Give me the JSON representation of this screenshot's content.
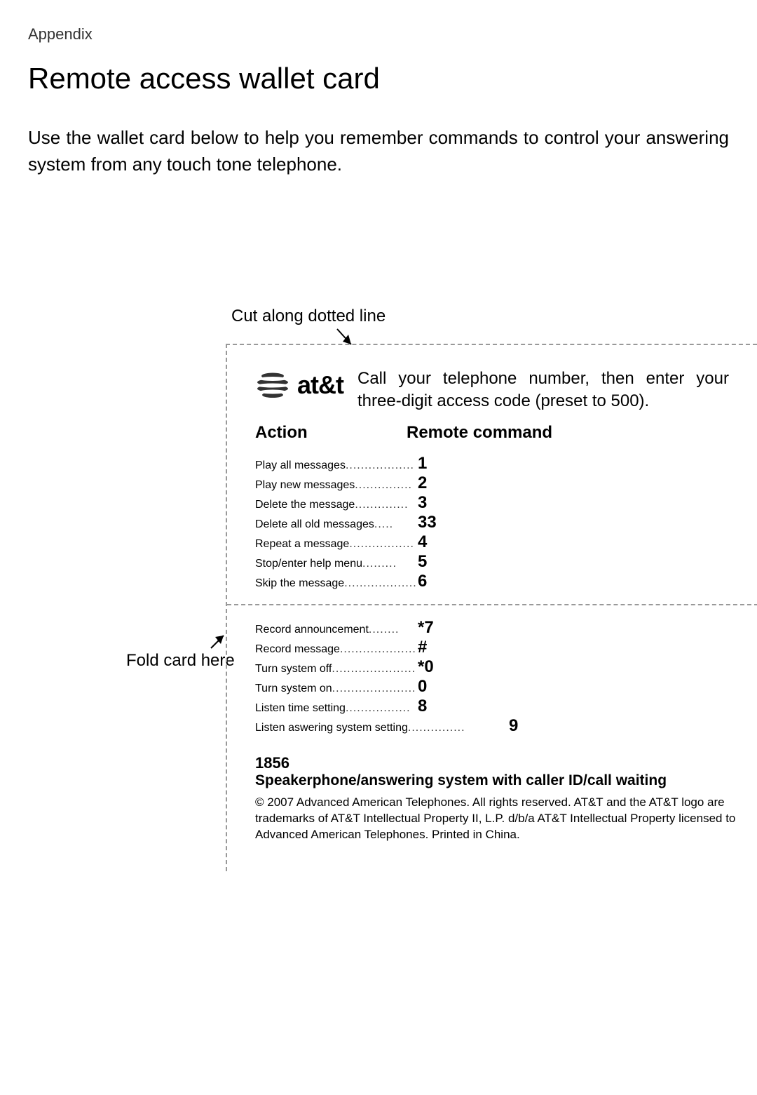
{
  "breadcrumb": "Appendix",
  "title": "Remote access wallet card",
  "intro": "Use the wallet card below to help you remember commands to control your answering system from any touch tone telephone.",
  "cut_label": "Cut along dotted line",
  "fold_label": "Fold card here",
  "logo_text": "at&t",
  "call_instruction": "Call your telephone number, then enter your three-digit access code (preset to 500).",
  "col_action": "Action",
  "col_command": "Remote command",
  "commands_top": [
    {
      "action": "Play all messages",
      "dots": "..................",
      "code": "1"
    },
    {
      "action": "Play new messages",
      "dots": "...............",
      "code": "2"
    },
    {
      "action": "Delete the message",
      "dots": "..............",
      "code": "3"
    },
    {
      "action": "Delete all old messages",
      "dots": ".....",
      "code": "33"
    },
    {
      "action": "Repeat a message",
      "dots": ".................",
      "code": "4"
    },
    {
      "action": "Stop/enter help menu",
      "dots": ".........",
      "code": "5"
    },
    {
      "action": "Skip the message",
      "dots": "...................",
      "code": "6"
    }
  ],
  "commands_bottom": [
    {
      "action": "Record announcement",
      "dots": "........",
      "code": "*7"
    },
    {
      "action": "Record message",
      "dots": "......................",
      "code": "#"
    },
    {
      "action": "Turn system off",
      "dots": "........................",
      "code": "*0"
    },
    {
      "action": "Turn system on",
      "dots": "........................",
      "code": "0"
    },
    {
      "action": "Listen time setting",
      "dots": ".................",
      "code": "8"
    },
    {
      "action": "Listen aswering system setting",
      "dots": "...............",
      "code": "9",
      "wide": true
    }
  ],
  "model_number": "1856",
  "model_desc": "Speakerphone/answering system with caller ID/call waiting",
  "copyright": "© 2007 Advanced American Telephones. All rights reserved. AT&T and the AT&T logo are trademarks of AT&T Intellectual Property II, L.P. d/b/a AT&T Intellectual Property licensed to Advanced American Telephones. Printed in China.",
  "colors": {
    "text": "#000000",
    "background": "#ffffff",
    "dash": "#999999"
  }
}
